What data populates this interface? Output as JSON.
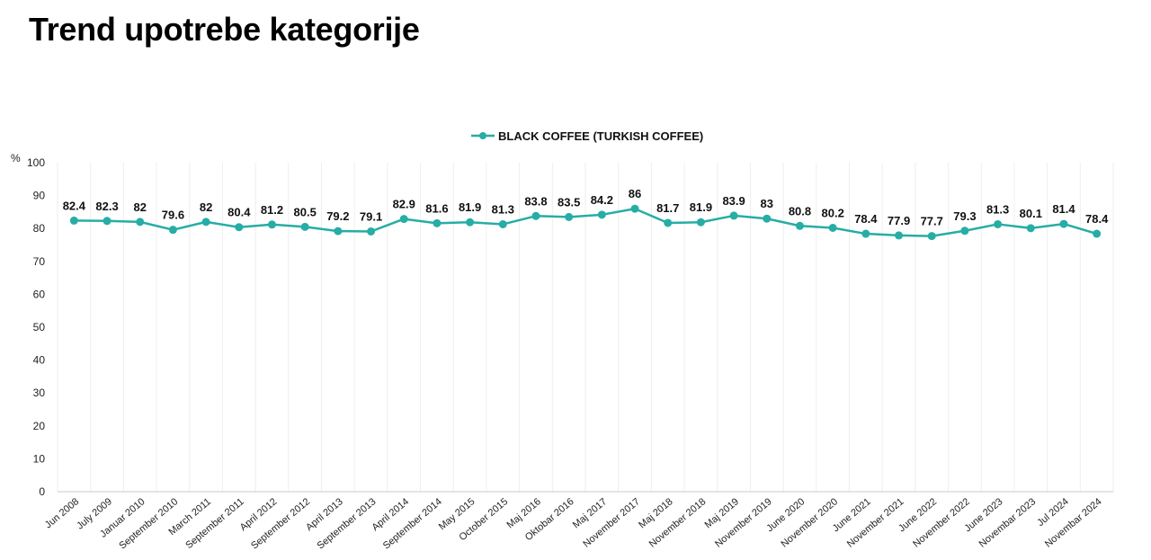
{
  "page_title": "Trend upotrebe kategorije",
  "chart_data": {
    "type": "line",
    "title": "Trend upotrebe kategorije",
    "ylabel": "%",
    "xlabel": "",
    "ylim": [
      0,
      100
    ],
    "yticks": [
      "0",
      "10",
      "20",
      "30",
      "40",
      "50",
      "60",
      "70",
      "80",
      "90",
      "100"
    ],
    "grid": "vertical",
    "legend_position": "top-center",
    "categories": [
      "Jun 2008",
      "July 2009",
      "Januar 2010",
      "September 2010",
      "March 2011",
      "September 2011",
      "April 2012",
      "September 2012",
      "April 2013",
      "September 2013",
      "April 2014",
      "September 2014",
      "May 2015",
      "October 2015",
      "Maj 2016",
      "Oktobar 2016",
      "Maj 2017",
      "November 2017",
      "Maj 2018",
      "November 2018",
      "Maj 2019",
      "November 2019",
      "June 2020",
      "November 2020",
      "June 2021",
      "November 2021",
      "June 2022",
      "November 2022",
      "June 2023",
      "Novembar 2023",
      "Jul 2024",
      "Novembar 2024"
    ],
    "series": [
      {
        "name": "BLACK COFFEE (TURKISH COFFEE)",
        "color": "#26ADA5",
        "values": [
          82.4,
          82.3,
          82,
          79.6,
          82,
          80.4,
          81.2,
          80.5,
          79.2,
          79.1,
          82.9,
          81.6,
          81.9,
          81.3,
          83.8,
          83.5,
          84.2,
          86,
          81.7,
          81.9,
          83.9,
          83,
          80.8,
          80.2,
          78.4,
          77.9,
          77.7,
          79.3,
          81.3,
          80.1,
          81.4,
          78.4
        ]
      }
    ]
  }
}
